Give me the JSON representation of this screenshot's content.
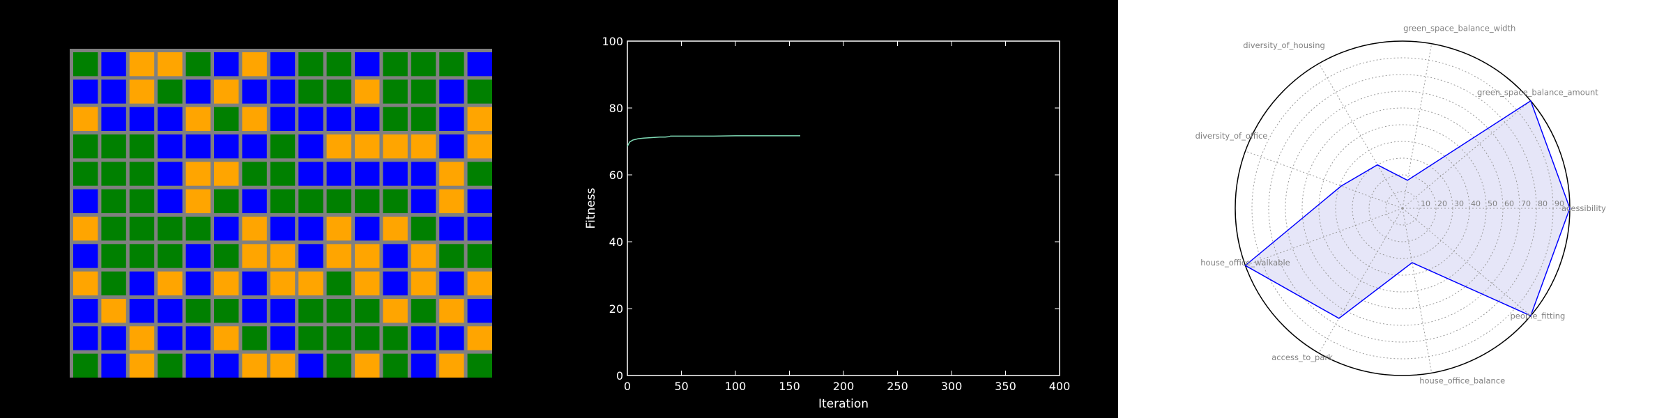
{
  "colors": {
    "background": "#000000",
    "grid_gray": "#808080",
    "green": "#008000",
    "orange": "#FFA500",
    "blue": "#0000FF",
    "line": "#7FDBB6",
    "radar_line": "#0000FF",
    "radar_fill": "#E6E6F8"
  },
  "chart_data": [
    {
      "type": "heatmap",
      "description_note": "",
      "cols": 15,
      "rows": 12,
      "legend": {
        "G": "green",
        "O": "orange",
        "B": "blue"
      },
      "cells": [
        "GBOOGBOBGGBGGGB",
        "BBOGBOBBGGOGGBG",
        "OBBBOGOBBBBGGBO",
        "GGGBBBBGBOOOOBO",
        "GGGBOOGGBBBBBOG",
        "BGGBOGBGGGGGBOB",
        "OGGGGBOBBOBOGBB",
        "BGGGBGOOBOOBOGG",
        "OGBOBOBOOGOBOBO",
        "BOBBGGBBGGGOGOB",
        "BBOBBOGBGGGGBBO",
        "GBOGBBOOBGOGBOG"
      ]
    },
    {
      "type": "line",
      "xlabel": "Iteration",
      "ylabel": "Fitness",
      "xlim": [
        0,
        400
      ],
      "ylim": [
        0,
        100
      ],
      "xticks": [
        0,
        50,
        100,
        150,
        200,
        250,
        300,
        350,
        400
      ],
      "yticks": [
        0,
        20,
        40,
        60,
        80,
        100
      ],
      "series": [
        {
          "x": [
            0,
            2,
            5,
            10,
            15,
            20,
            25,
            30,
            35,
            38,
            40,
            60,
            80,
            100,
            120,
            140,
            160
          ],
          "y": [
            68.5,
            69.8,
            70.4,
            70.8,
            71.0,
            71.1,
            71.2,
            71.3,
            71.3,
            71.4,
            71.6,
            71.6,
            71.6,
            71.7,
            71.7,
            71.7,
            71.7
          ]
        }
      ]
    },
    {
      "type": "radar",
      "rlim": [
        0,
        100
      ],
      "rticks": [
        "10",
        "20",
        "30",
        "40",
        "50",
        "60",
        "70",
        "80",
        "90"
      ],
      "axes": [
        "acessibility",
        "green_space_balance_amount",
        "green_space_balance_width",
        "diversity_of_housing",
        "diversity_of_office",
        "house_office_walkable",
        "access_to_park",
        "house_office_balance",
        "people_fitting"
      ],
      "values": [
        100,
        100,
        17,
        30,
        39,
        100,
        76,
        33,
        100
      ]
    }
  ]
}
